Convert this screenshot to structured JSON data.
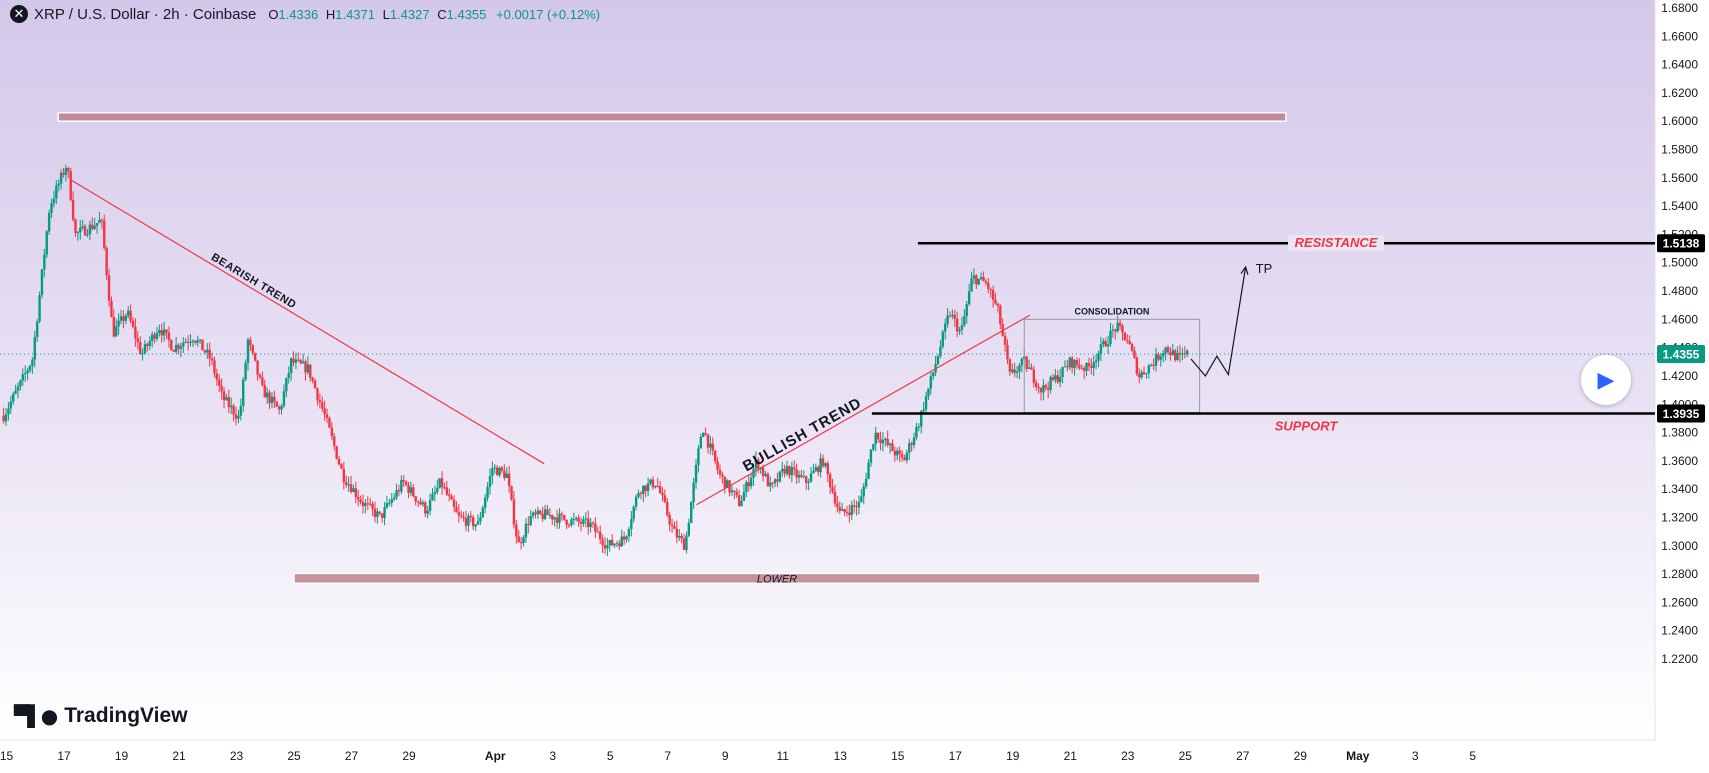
{
  "header": {
    "symbol_icon": "x-logo-icon",
    "title": "XRP / U.S. Dollar · 2h · Coinbase",
    "open_label": "O",
    "open": "1.4336",
    "high_label": "H",
    "high": "1.4371",
    "low_label": "L",
    "low": "1.4327",
    "close_label": "C",
    "close": "1.4355",
    "change": "+0.0017 (+0.12%)"
  },
  "branding": {
    "name": "TradingView",
    "icon": "tradingview-logo-icon"
  },
  "play_button": {
    "icon": "play-icon"
  },
  "colors": {
    "background_top": "#d4c8ea",
    "background_bottom": "#ffffff",
    "up": "#089981",
    "down": "#f23645",
    "line_red": "#f23645",
    "zone": "#b9727e",
    "level_line": "#000000",
    "resistance_text": "#f23645",
    "support_text": "#f23645"
  },
  "chart_data": {
    "type": "candlestick",
    "symbol": "XRP / U.S. Dollar",
    "interval": "2h",
    "exchange": "Coinbase",
    "ylim": [
      1.21,
      1.69
    ],
    "y_ticks": [
      "1.2200",
      "1.2400",
      "1.2600",
      "1.2800",
      "1.3000",
      "1.3200",
      "1.3400",
      "1.3600",
      "1.3800",
      "1.4000",
      "1.4200",
      "1.4400",
      "1.4600",
      "1.4800",
      "1.5000",
      "1.5200",
      "1.5400",
      "1.5600",
      "1.5800",
      "1.6000",
      "1.6200",
      "1.6400",
      "1.6600",
      "1.6800"
    ],
    "x_ticks": [
      {
        "label": "15",
        "t": -2
      },
      {
        "label": "17",
        "t": 0
      },
      {
        "label": "19",
        "t": 2
      },
      {
        "label": "21",
        "t": 4
      },
      {
        "label": "23",
        "t": 6
      },
      {
        "label": "25",
        "t": 8
      },
      {
        "label": "27",
        "t": 10
      },
      {
        "label": "29",
        "t": 12
      },
      {
        "label": "Apr",
        "t": 15
      },
      {
        "label": "3",
        "t": 17
      },
      {
        "label": "5",
        "t": 19
      },
      {
        "label": "7",
        "t": 21
      },
      {
        "label": "9",
        "t": 23
      },
      {
        "label": "11",
        "t": 25
      },
      {
        "label": "13",
        "t": 27
      },
      {
        "label": "15",
        "t": 29
      },
      {
        "label": "17",
        "t": 31
      },
      {
        "label": "19",
        "t": 33
      },
      {
        "label": "21",
        "t": 35
      },
      {
        "label": "23",
        "t": 37
      },
      {
        "label": "25",
        "t": 39
      },
      {
        "label": "27",
        "t": 41
      },
      {
        "label": "29",
        "t": 43
      },
      {
        "label": "May",
        "t": 45
      },
      {
        "label": "3",
        "t": 47
      },
      {
        "label": "5",
        "t": 49
      }
    ],
    "price_path": [
      [
        -2.1,
        1.392
      ],
      [
        -1.5,
        1.415
      ],
      [
        -1.1,
        1.432
      ],
      [
        -0.5,
        1.54
      ],
      [
        0.1,
        1.57
      ],
      [
        0.4,
        1.52
      ],
      [
        0.9,
        1.525
      ],
      [
        1.3,
        1.53
      ],
      [
        1.5,
        1.49
      ],
      [
        1.7,
        1.45
      ],
      [
        2.2,
        1.465
      ],
      [
        2.7,
        1.435
      ],
      [
        3.3,
        1.455
      ],
      [
        3.8,
        1.44
      ],
      [
        4.5,
        1.448
      ],
      [
        5.1,
        1.432
      ],
      [
        5.5,
        1.405
      ],
      [
        6.1,
        1.39
      ],
      [
        6.4,
        1.445
      ],
      [
        6.9,
        1.41
      ],
      [
        7.5,
        1.395
      ],
      [
        7.9,
        1.43
      ],
      [
        8.5,
        1.425
      ],
      [
        9.1,
        1.39
      ],
      [
        9.7,
        1.35
      ],
      [
        10.4,
        1.33
      ],
      [
        11.0,
        1.32
      ],
      [
        11.8,
        1.345
      ],
      [
        12.6,
        1.325
      ],
      [
        13.1,
        1.345
      ],
      [
        13.7,
        1.32
      ],
      [
        14.4,
        1.315
      ],
      [
        14.9,
        1.355
      ],
      [
        15.4,
        1.35
      ],
      [
        15.8,
        1.3
      ],
      [
        16.2,
        1.32
      ],
      [
        16.8,
        1.322
      ],
      [
        17.5,
        1.318
      ],
      [
        18.3,
        1.315
      ],
      [
        18.9,
        1.3
      ],
      [
        19.5,
        1.305
      ],
      [
        20.0,
        1.34
      ],
      [
        20.6,
        1.345
      ],
      [
        21.2,
        1.31
      ],
      [
        21.6,
        1.3
      ],
      [
        22.2,
        1.385
      ],
      [
        22.8,
        1.35
      ],
      [
        23.5,
        1.33
      ],
      [
        24.1,
        1.36
      ],
      [
        24.6,
        1.34
      ],
      [
        25.1,
        1.355
      ],
      [
        25.8,
        1.345
      ],
      [
        26.4,
        1.36
      ],
      [
        27.0,
        1.322
      ],
      [
        27.7,
        1.33
      ],
      [
        28.2,
        1.38
      ],
      [
        28.7,
        1.37
      ],
      [
        29.2,
        1.36
      ],
      [
        29.7,
        1.385
      ],
      [
        30.2,
        1.42
      ],
      [
        30.8,
        1.465
      ],
      [
        31.2,
        1.45
      ],
      [
        31.6,
        1.49
      ],
      [
        32.1,
        1.485
      ],
      [
        32.5,
        1.465
      ],
      [
        32.9,
        1.42
      ],
      [
        33.4,
        1.43
      ],
      [
        34.0,
        1.41
      ],
      [
        34.6,
        1.42
      ],
      [
        35.0,
        1.43
      ],
      [
        35.6,
        1.425
      ],
      [
        36.1,
        1.44
      ],
      [
        36.6,
        1.455
      ],
      [
        37.0,
        1.445
      ],
      [
        37.4,
        1.42
      ],
      [
        37.9,
        1.43
      ],
      [
        38.3,
        1.44
      ],
      [
        38.8,
        1.432
      ],
      [
        39.1,
        1.4355
      ]
    ],
    "last_price": "1.4355",
    "levels": [
      {
        "name": "resistance",
        "label": "RESISTANCE",
        "price": 1.5138,
        "price_label": "1.5138",
        "t_start": 29.7
      },
      {
        "name": "support",
        "label": "SUPPORT",
        "price": 1.3935,
        "price_label": "1.3935",
        "t_start": 28.1
      }
    ],
    "zones": [
      {
        "name": "top-zone",
        "label": "",
        "t_start": -0.2,
        "t_end": 42.5,
        "price_low": 1.6,
        "price_high": 1.606
      },
      {
        "name": "lower-zone",
        "label": "LOWER",
        "t_start": 8.0,
        "t_end": 41.6,
        "price_low": 1.2735,
        "price_high": 1.2805
      }
    ],
    "trendlines": [
      {
        "name": "bearish-trend-line",
        "label": "BEARISH TREND",
        "t1": 0.2,
        "p1": 1.559,
        "t2": 16.7,
        "p2": 1.358
      },
      {
        "name": "bullish-trend-line",
        "label": "BULLISH TREND",
        "t1": 22.0,
        "p1": 1.329,
        "t2": 33.6,
        "p2": 1.463
      }
    ],
    "consolidation_box": {
      "label": "CONSOLIDATION",
      "t1": 33.4,
      "t2": 39.5,
      "p_low": 1.394,
      "p_high": 1.46
    },
    "projection": {
      "label": "TP",
      "points": [
        [
          39.2,
          1.432
        ],
        [
          39.7,
          1.42
        ],
        [
          40.1,
          1.434
        ],
        [
          40.5,
          1.421
        ],
        [
          41.1,
          1.497
        ]
      ]
    }
  }
}
